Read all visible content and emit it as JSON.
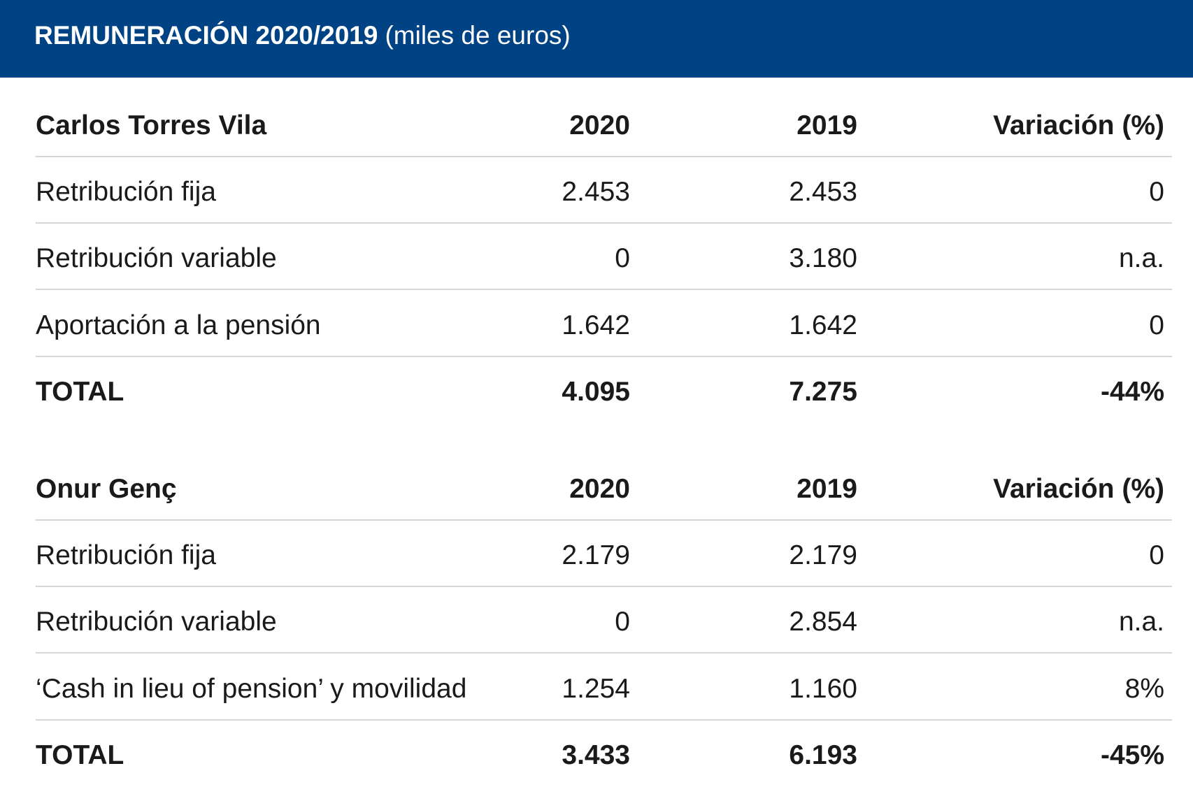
{
  "header": {
    "title": "REMUNERACIÓN 2020/2019",
    "subtitle": "(miles de euros)"
  },
  "tables": [
    {
      "columns": [
        "Carlos Torres Vila",
        "2020",
        "2019",
        "Variación (%)"
      ],
      "rows": [
        [
          "Retribución fija",
          "2.453",
          "2.453",
          "0"
        ],
        [
          "Retribución variable",
          "0",
          "3.180",
          "n.a."
        ],
        [
          "Aportación a la pensión",
          "1.642",
          "1.642",
          "0"
        ]
      ],
      "total": [
        "TOTAL",
        "4.095",
        "7.275",
        "-44%"
      ]
    },
    {
      "columns": [
        "Onur Genç",
        "2020",
        "2019",
        "Variación (%)"
      ],
      "rows": [
        [
          "Retribución fija",
          "2.179",
          "2.179",
          "0"
        ],
        [
          "Retribución variable",
          "0",
          "2.854",
          "n.a."
        ],
        [
          "‘Cash in lieu of pension’ y movilidad",
          "1.254",
          "1.160",
          "8%"
        ]
      ],
      "total": [
        "TOTAL",
        "3.433",
        "6.193",
        "-45%"
      ]
    }
  ]
}
